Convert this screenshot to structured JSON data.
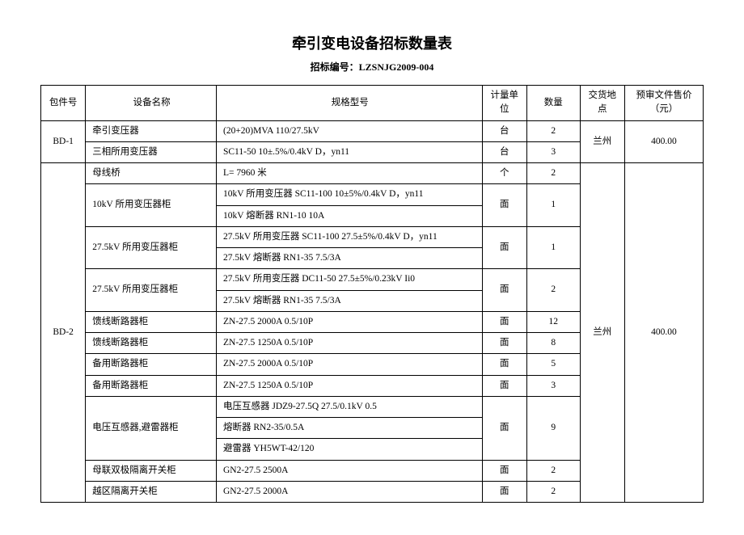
{
  "title": "牵引变电设备招标数量表",
  "bidNumberLabel": "招标编号：",
  "bidNumber": "LZSNJG2009-004",
  "headers": {
    "pkg": "包件号",
    "name": "设备名称",
    "spec": "规格型号",
    "unit": "计量单位",
    "qty": "数量",
    "loc": "交货地点",
    "price": "预审文件售价（元）"
  },
  "pkg1": {
    "id": "BD-1",
    "r1": {
      "name": "牵引变压器",
      "spec": "(20+20)MVA   110/27.5kV",
      "unit": "台",
      "qty": "2"
    },
    "r2": {
      "name": "三相所用变压器",
      "spec": "SC11-50   10±.5%/0.4kV     D，yn11",
      "unit": "台",
      "qty": "3"
    },
    "loc": "兰州",
    "price": "400.00"
  },
  "pkg2": {
    "id": "BD-2",
    "r1": {
      "name": "母线桥",
      "spec": "L= 7960  米",
      "unit": "个",
      "qty": "2"
    },
    "r2": {
      "name": "10kV 所用变压器柜",
      "spec1": "10kV 所用变压器 SC11-100 10±5%/0.4kV D，yn11",
      "spec2": "10kV 熔断器 RN1-10 10A",
      "unit": "面",
      "qty": "1"
    },
    "r3": {
      "name": "27.5kV 所用变压器柜",
      "spec1": "27.5kV 所用变压器 SC11-100 27.5±5%/0.4kV D，yn11",
      "spec2": "27.5kV 熔断器 RN1-35 7.5/3A",
      "unit": "面",
      "qty": "1"
    },
    "r4": {
      "name": "27.5kV 所用变压器柜",
      "spec1": "27.5kV 所用变压器 DC11-50 27.5±5%/0.23kV Ii0",
      "spec2": "27.5kV 熔断器 RN1-35 7.5/3A",
      "unit": "面",
      "qty": "2"
    },
    "r5": {
      "name": "馈线断路器柜",
      "spec": "ZN-27.5 2000A 0.5/10P",
      "unit": "面",
      "qty": "12"
    },
    "r6": {
      "name": "馈线断路器柜",
      "spec": "ZN-27.5 1250A 0.5/10P",
      "unit": "面",
      "qty": "8"
    },
    "r7": {
      "name": "备用断路器柜",
      "spec": "ZN-27.5 2000A 0.5/10P",
      "unit": "面",
      "qty": "5"
    },
    "r8": {
      "name": "备用断路器柜",
      "spec": "ZN-27.5 1250A 0.5/10P",
      "unit": "面",
      "qty": "3"
    },
    "r9": {
      "name": "电压互感器,避雷器柜",
      "spec1": "电压互感器 JDZ9-27.5Q 27.5/0.1kV 0.5",
      "spec2": "熔断器 RN2-35/0.5A",
      "spec3": "避雷器 YH5WT-42/120",
      "unit": "面",
      "qty": "9"
    },
    "r10": {
      "name": "母联双极隔离开关柜",
      "spec": "GN2-27.5    2500A",
      "unit": "面",
      "qty": "2"
    },
    "r11": {
      "name": "越区隔离开关柜",
      "spec": "GN2-27.5    2000A",
      "unit": "面",
      "qty": "2"
    },
    "loc": "兰州",
    "price": "400.00"
  }
}
